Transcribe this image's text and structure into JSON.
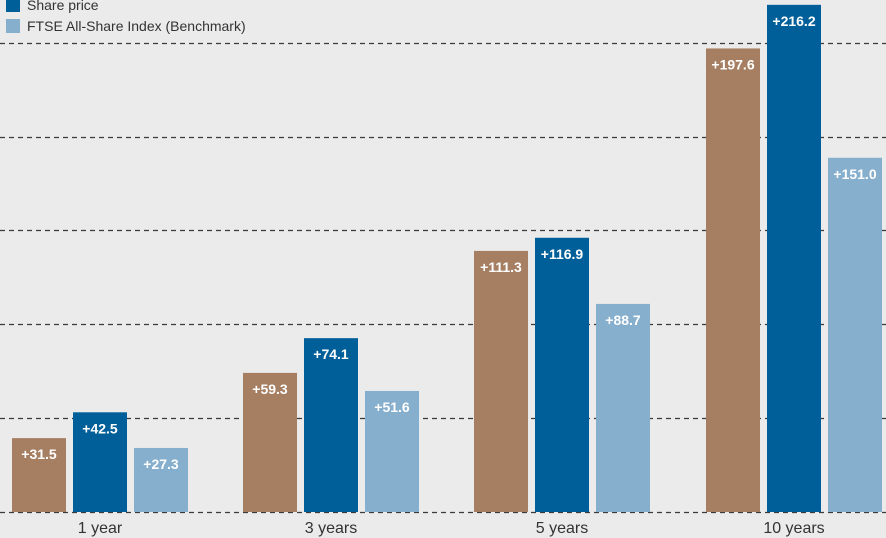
{
  "chart_data": {
    "type": "bar",
    "title": "",
    "xlabel": "",
    "ylabel": "",
    "categories": [
      "1 year",
      "3 years",
      "5 years",
      "10 years"
    ],
    "series": [
      {
        "name": "",
        "color": "#a67f63",
        "values": [
          31.5,
          59.3,
          111.3,
          197.6
        ],
        "labels": [
          "+31.5",
          "+59.3",
          "+111.3",
          "+197.6"
        ]
      },
      {
        "name": "Share price",
        "color": "#005f99",
        "values": [
          42.5,
          74.1,
          116.9,
          216.2
        ],
        "labels": [
          "+42.5",
          "+74.1",
          "+116.9",
          "+216.2"
        ]
      },
      {
        "name": "FTSE All-Share Index (Benchmark)",
        "color": "#86aecd",
        "values": [
          27.3,
          51.6,
          88.7,
          151.0
        ],
        "labels": [
          "+27.3",
          "+51.6",
          "+88.7",
          "+151.0"
        ]
      }
    ],
    "ylim": [
      0,
      225
    ],
    "gridlines": [
      0,
      40,
      80,
      120,
      160,
      200
    ],
    "grid": true,
    "legend_position": "top-left"
  }
}
